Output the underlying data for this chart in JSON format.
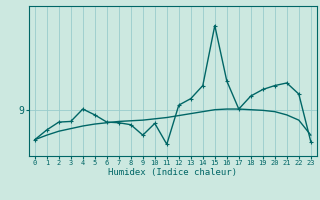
{
  "xlabel": "Humidex (Indice chaleur)",
  "bg_color": "#cce8e0",
  "line_color": "#006666",
  "grid_color": "#99cccc",
  "x": [
    0,
    1,
    2,
    3,
    4,
    5,
    6,
    7,
    8,
    9,
    10,
    11,
    12,
    13,
    14,
    15,
    16,
    17,
    18,
    19,
    20,
    21,
    22,
    23
  ],
  "y_data": [
    8.55,
    8.7,
    8.82,
    8.83,
    9.02,
    8.93,
    8.82,
    8.81,
    8.78,
    8.62,
    8.8,
    8.48,
    9.08,
    9.18,
    9.38,
    10.3,
    9.45,
    9.02,
    9.22,
    9.32,
    9.38,
    9.42,
    9.25,
    8.52
  ],
  "y_trend": [
    8.55,
    8.62,
    8.68,
    8.72,
    8.76,
    8.79,
    8.81,
    8.83,
    8.84,
    8.85,
    8.87,
    8.89,
    8.92,
    8.95,
    8.98,
    9.01,
    9.02,
    9.02,
    9.01,
    9.0,
    8.98,
    8.93,
    8.85,
    8.62
  ],
  "ytick_label": "9",
  "ytick_value": 9.0,
  "ylim": [
    8.3,
    10.6
  ],
  "xlim": [
    -0.5,
    23.5
  ]
}
